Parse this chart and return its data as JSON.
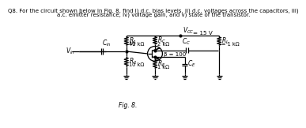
{
  "title_line1": "Q8. For the circuit shown below in Fig. 8, find i) d.c. bias levels, ii) d.c. voltages across the capacitors, iii)",
  "title_line2": "a.c. emitter resistance, iv) voltage gain, and v) state of the transistor.",
  "fig_label": "Fig. 8.",
  "bg_color": "#ffffff",
  "line_color": "#000000"
}
